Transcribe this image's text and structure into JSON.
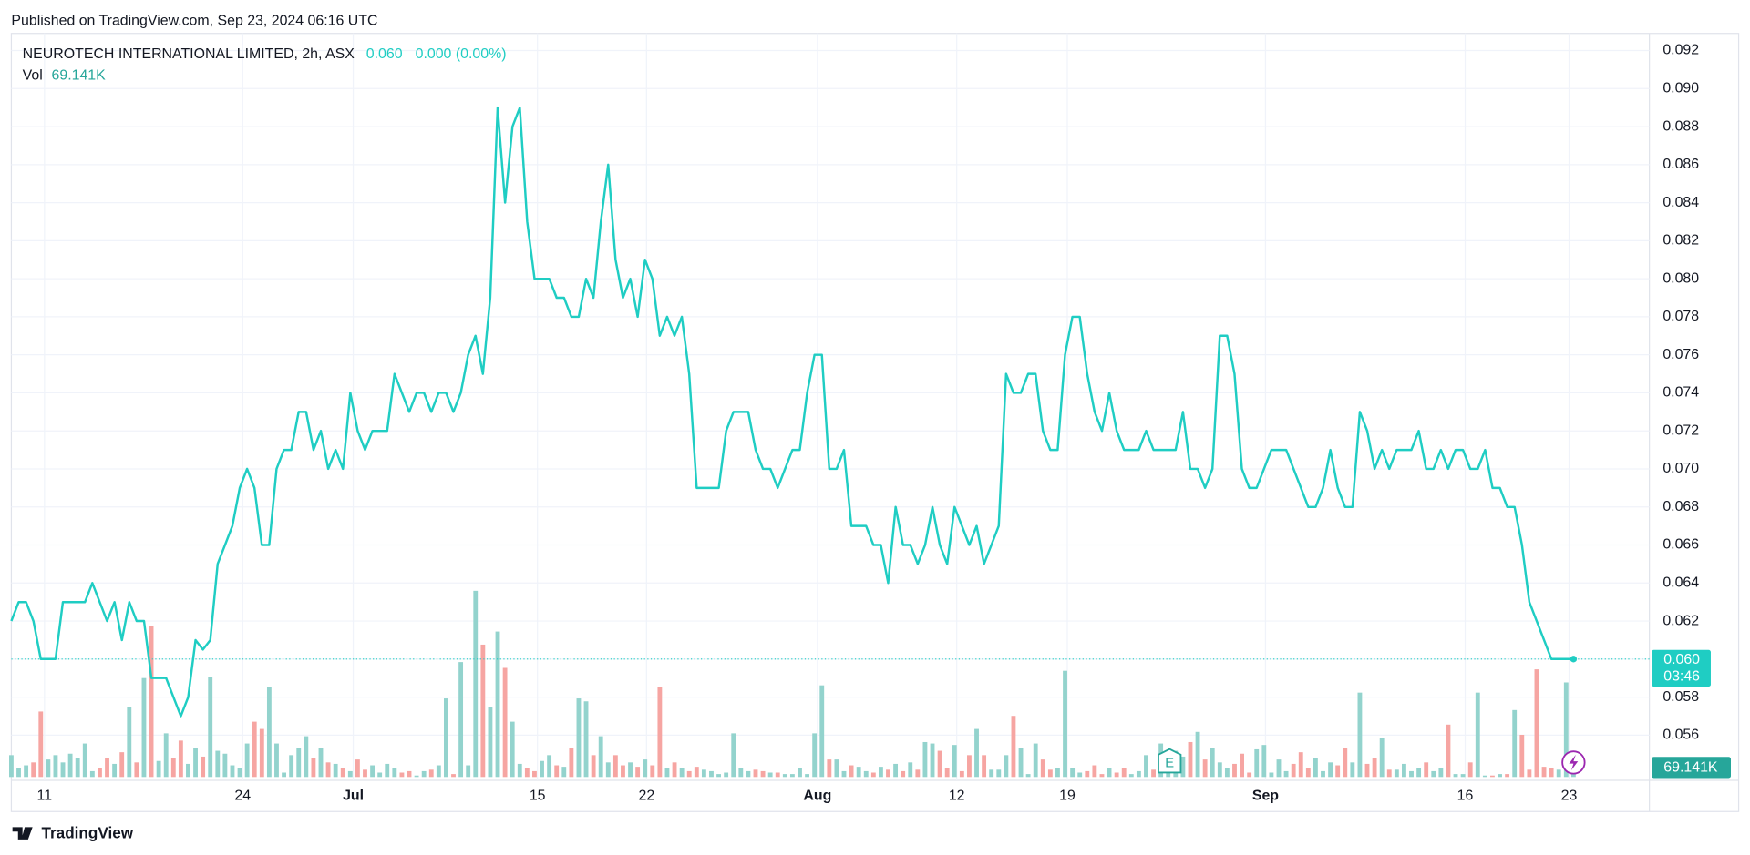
{
  "page": {
    "published": "Published on TradingView.com, Sep 23, 2024 06:16 UTC",
    "brand": "TradingView"
  },
  "chart_data": {
    "type": "line",
    "symbol": "NEUROTECH INTERNATIONAL LIMITED, 2h, ASX",
    "last_price": "0.060",
    "change": "0.000 (0.00%)",
    "volume_label": "Vol",
    "volume_value": "69.141K",
    "price_badge": {
      "price": "0.060",
      "countdown": "03:46"
    },
    "volume_badge": "69.141K",
    "event_marker": "E",
    "color": "#1fcdc3",
    "up_color": "#93d3cd",
    "down_color": "#f6a5a2",
    "grid": true,
    "xlim": [
      0,
      212
    ],
    "xticks": [
      {
        "value": 4.5,
        "label": "11"
      },
      {
        "value": 31.4,
        "label": "24"
      },
      {
        "value": 46.4,
        "label": "Jul"
      },
      {
        "value": 71.4,
        "label": "15"
      },
      {
        "value": 86.2,
        "label": "22"
      },
      {
        "value": 109.4,
        "label": "Aug"
      },
      {
        "value": 128.3,
        "label": "12"
      },
      {
        "value": 143.3,
        "label": "19"
      },
      {
        "value": 170.2,
        "label": "Sep"
      },
      {
        "value": 197.3,
        "label": "16"
      },
      {
        "value": 211.4,
        "label": "23"
      }
    ],
    "ylim": [
      0.0538,
      0.0929
    ],
    "yticks": [
      0.056,
      0.058,
      {
        "value": 0.06,
        "label": "0.060"
      },
      0.062,
      0.064,
      0.066,
      0.068,
      {
        "value": 0.07,
        "label": "0.070"
      },
      0.072,
      0.074,
      0.076,
      0.078,
      {
        "value": 0.08,
        "label": "0.080"
      },
      0.082,
      0.084,
      0.086,
      0.088,
      {
        "value": 0.09,
        "label": "0.090"
      },
      0.092
    ],
    "values": [
      0.062,
      0.063,
      0.063,
      0.062,
      0.06,
      0.06,
      0.06,
      0.063,
      0.063,
      0.063,
      0.063,
      0.064,
      0.063,
      0.062,
      0.063,
      0.061,
      0.063,
      0.062,
      0.062,
      0.059,
      0.059,
      0.059,
      0.058,
      0.057,
      0.058,
      0.061,
      0.0605,
      0.061,
      0.065,
      0.066,
      0.067,
      0.069,
      0.07,
      0.069,
      0.066,
      0.066,
      0.07,
      0.071,
      0.071,
      0.073,
      0.073,
      0.071,
      0.072,
      0.07,
      0.071,
      0.07,
      0.074,
      0.072,
      0.071,
      0.072,
      0.072,
      0.072,
      0.075,
      0.074,
      0.073,
      0.074,
      0.074,
      0.073,
      0.074,
      0.074,
      0.073,
      0.074,
      0.076,
      0.077,
      0.075,
      0.079,
      0.089,
      0.084,
      0.088,
      0.089,
      0.083,
      0.08,
      0.08,
      0.08,
      0.079,
      0.079,
      0.078,
      0.078,
      0.08,
      0.079,
      0.083,
      0.086,
      0.081,
      0.079,
      0.08,
      0.078,
      0.081,
      0.08,
      0.077,
      0.078,
      0.077,
      0.078,
      0.075,
      0.069,
      0.069,
      0.069,
      0.069,
      0.072,
      0.073,
      0.073,
      0.073,
      0.071,
      0.07,
      0.07,
      0.069,
      0.07,
      0.071,
      0.071,
      0.074,
      0.076,
      0.076,
      0.07,
      0.07,
      0.071,
      0.067,
      0.067,
      0.067,
      0.066,
      0.066,
      0.064,
      0.068,
      0.066,
      0.066,
      0.065,
      0.066,
      0.068,
      0.066,
      0.065,
      0.068,
      0.067,
      0.066,
      0.067,
      0.065,
      0.066,
      0.067,
      0.075,
      0.074,
      0.074,
      0.075,
      0.075,
      0.072,
      0.071,
      0.071,
      0.076,
      0.078,
      0.078,
      0.075,
      0.073,
      0.072,
      0.074,
      0.072,
      0.071,
      0.071,
      0.071,
      0.072,
      0.071,
      0.071,
      0.071,
      0.071,
      0.073,
      0.07,
      0.07,
      0.069,
      0.07,
      0.077,
      0.077,
      0.075,
      0.07,
      0.069,
      0.069,
      0.07,
      0.071,
      0.071,
      0.071,
      0.07,
      0.069,
      0.068,
      0.068,
      0.069,
      0.071,
      0.069,
      0.068,
      0.068,
      0.073,
      0.072,
      0.07,
      0.071,
      0.07,
      0.071,
      0.071,
      0.071,
      0.072,
      0.07,
      0.07,
      0.071,
      0.07,
      0.071,
      0.071,
      0.07,
      0.07,
      0.071,
      0.069,
      0.069,
      0.068,
      0.068,
      0.066,
      0.063,
      0.062,
      0.061,
      0.06,
      0.06,
      0.06,
      0.06
    ],
    "volume": [
      150000,
      60000,
      80000,
      100000,
      450000,
      120000,
      150000,
      100000,
      160000,
      130000,
      230000,
      40000,
      60000,
      130000,
      90000,
      170000,
      480000,
      100000,
      680000,
      1040000,
      110000,
      300000,
      130000,
      250000,
      90000,
      200000,
      140000,
      690000,
      180000,
      160000,
      80000,
      60000,
      230000,
      380000,
      330000,
      620000,
      230000,
      30000,
      150000,
      200000,
      280000,
      130000,
      200000,
      100000,
      90000,
      60000,
      40000,
      120000,
      50000,
      80000,
      30000,
      90000,
      60000,
      30000,
      40000,
      10000,
      40000,
      50000,
      80000,
      540000,
      20000,
      790000,
      80000,
      1280000,
      910000,
      480000,
      1000000,
      750000,
      380000,
      90000,
      60000,
      40000,
      110000,
      150000,
      80000,
      70000,
      200000,
      540000,
      520000,
      150000,
      280000,
      100000,
      150000,
      80000,
      100000,
      70000,
      120000,
      80000,
      620000,
      60000,
      100000,
      60000,
      40000,
      70000,
      50000,
      40000,
      20000,
      30000,
      300000,
      60000,
      40000,
      50000,
      40000,
      30000,
      30000,
      20000,
      20000,
      60000,
      20000,
      300000,
      630000,
      120000,
      120000,
      40000,
      80000,
      70000,
      40000,
      30000,
      70000,
      50000,
      90000,
      40000,
      100000,
      50000,
      240000,
      230000,
      180000,
      60000,
      220000,
      40000,
      150000,
      330000,
      150000,
      50000,
      50000,
      150000,
      420000,
      200000,
      20000,
      230000,
      120000,
      50000,
      60000,
      730000,
      60000,
      30000,
      40000,
      80000,
      20000,
      60000,
      30000,
      60000,
      20000,
      40000,
      150000,
      50000,
      230000,
      60000,
      180000,
      140000,
      240000,
      310000,
      120000,
      200000,
      100000,
      60000,
      90000,
      160000,
      30000,
      190000,
      220000,
      30000,
      120000,
      40000,
      90000,
      170000,
      60000,
      130000,
      40000,
      100000,
      80000,
      200000,
      100000,
      580000,
      90000,
      130000,
      270000,
      50000,
      50000,
      90000,
      40000,
      60000,
      100000,
      40000,
      60000,
      360000,
      20000,
      20000,
      100000,
      580000,
      10000,
      10000,
      20000,
      20000,
      460000,
      290000,
      50000,
      740000,
      70000,
      60000,
      50000,
      650000,
      69141
    ]
  }
}
